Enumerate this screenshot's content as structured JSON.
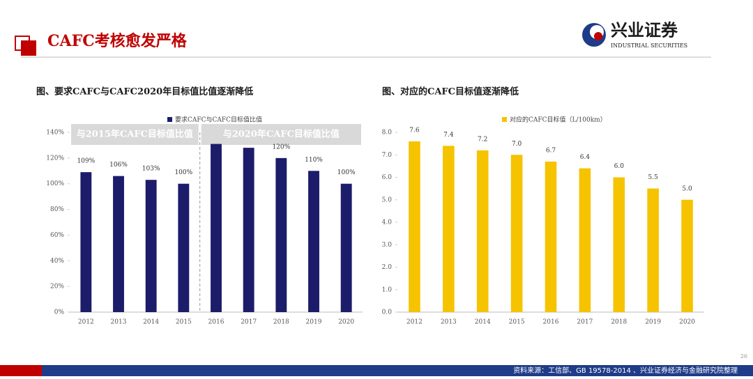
{
  "header": {
    "title": "CAFC考核愈发严格",
    "logo_cn": "兴业证券",
    "logo_en": "INDUSTRIAL SECURITIES"
  },
  "footer": {
    "source": "资料来源：工信部、GB 19578-2014 、兴业证券经济与金融研究院整理",
    "page": "26"
  },
  "chart_data": [
    {
      "type": "bar",
      "title": "图、要求CAFC与CAFC2020年目标值比值逐渐降低",
      "categories": [
        "2012",
        "2013",
        "2014",
        "2015",
        "2016",
        "2017",
        "2018",
        "2019",
        "2020"
      ],
      "series": [
        {
          "name": "要求CAFC与CAFC目标值比值",
          "color": "#1c1c6b",
          "values": [
            109,
            106,
            103,
            100,
            131,
            128,
            120,
            110,
            100
          ],
          "value_labels": [
            "109%",
            "106%",
            "103%",
            "100%",
            null,
            null,
            "120%",
            "110%",
            "100%"
          ]
        }
      ],
      "annotations": [
        "与2015年CAFC目标值比值",
        "与2020年CAFC目标值比值"
      ],
      "ylim": [
        0,
        140
      ],
      "yticks": [
        {
          "value": 0,
          "label": "0%"
        },
        {
          "value": 20,
          "label": "20%"
        },
        {
          "value": 40,
          "label": "40%"
        },
        {
          "value": 60,
          "label": "60%"
        },
        {
          "value": 80,
          "label": "80%"
        },
        {
          "value": 100,
          "label": "100%"
        },
        {
          "value": 120,
          "label": "120%"
        },
        {
          "value": 140,
          "label": "140%"
        }
      ],
      "legend": "top"
    },
    {
      "type": "bar",
      "title": "图、对应的CAFC目标值逐渐降低",
      "categories": [
        "2012",
        "2013",
        "2014",
        "2015",
        "2016",
        "2017",
        "2018",
        "2019",
        "2020"
      ],
      "series": [
        {
          "name": "对应的CAFC目标值（L/100km）",
          "color": "#f6c300",
          "values": [
            7.6,
            7.4,
            7.2,
            7.0,
            6.7,
            6.4,
            6.0,
            5.5,
            5.0
          ],
          "value_labels": [
            "7.6",
            "7.4",
            "7.2",
            "7.0",
            "6.7",
            "6.4",
            "6.0",
            "5.5",
            "5.0"
          ]
        }
      ],
      "ylim": [
        0,
        8
      ],
      "yticks": [
        {
          "value": 0,
          "label": "0.0"
        },
        {
          "value": 1,
          "label": "1.0"
        },
        {
          "value": 2,
          "label": "2.0"
        },
        {
          "value": 3,
          "label": "3.0"
        },
        {
          "value": 4,
          "label": "4.0"
        },
        {
          "value": 5,
          "label": "5.0"
        },
        {
          "value": 6,
          "label": "6.0"
        },
        {
          "value": 7,
          "label": "7.0"
        },
        {
          "value": 8,
          "label": "8.0"
        }
      ],
      "legend": "top"
    }
  ]
}
